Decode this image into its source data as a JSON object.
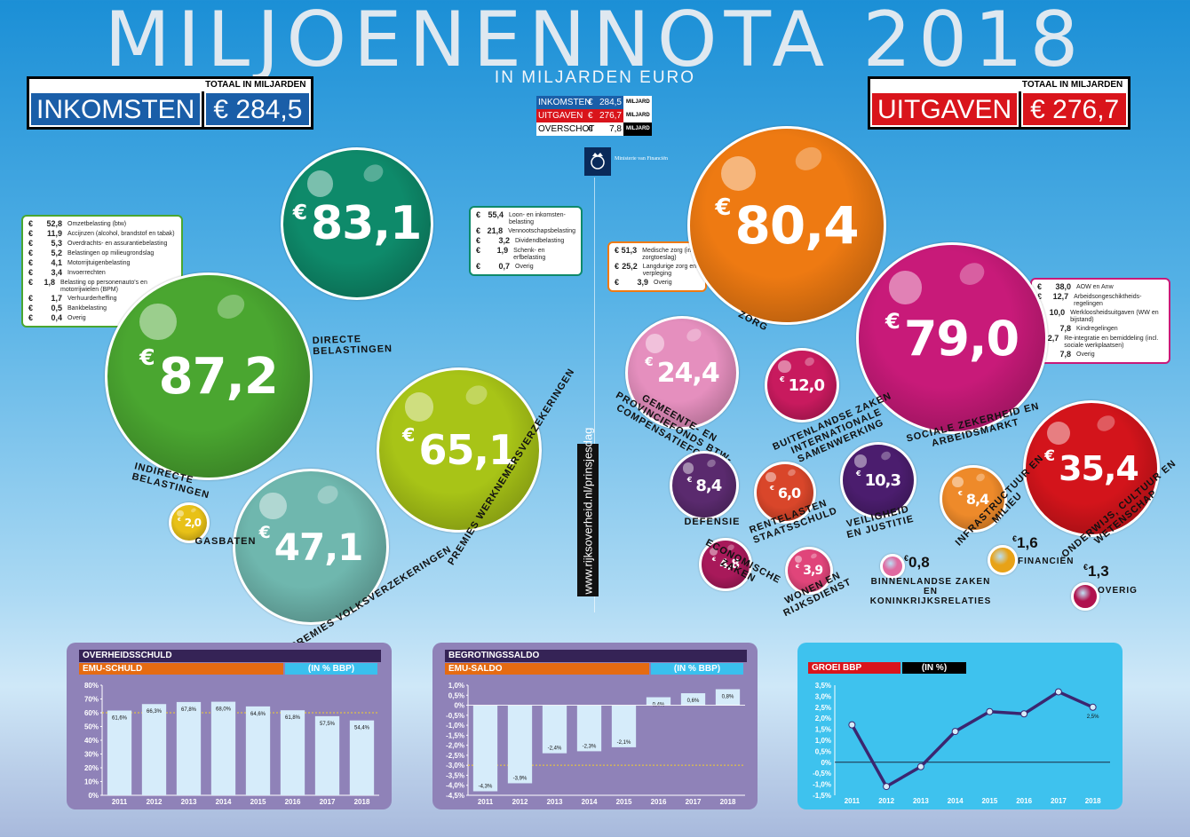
{
  "title": "MILJOENENNOTA 2018",
  "subtitle": "IN MILJARDEN EURO",
  "totals": {
    "label": "TOTAAL IN MILJARDEN",
    "income_name": "INKOMSTEN",
    "income_value": "€ 284,5",
    "spend_name": "UITGAVEN",
    "spend_value": "€ 276,7"
  },
  "summary": [
    {
      "name": "INKOMSTEN",
      "euro": "€",
      "value": "284,5",
      "unit": "MILJARD"
    },
    {
      "name": "UITGAVEN",
      "euro": "€",
      "value": "276,7",
      "unit": "MILJARD"
    },
    {
      "name": "OVERSCHOT",
      "euro": "€",
      "value": "7,8",
      "unit": "MILJARD"
    }
  ],
  "ministry": "Ministerie van Financiën",
  "url": "www.rijksoverheid.nl/prinsjesdag",
  "colors": {
    "income_blue": "#1a5ea8",
    "spend_red": "#d9141b",
    "panel": "#8f82b8",
    "bar": "#d6ecfa",
    "line": "#3b2670"
  },
  "balls": [
    {
      "id": "directe",
      "euro": "€",
      "value": "83,1",
      "label": "DIRECTE BELASTINGEN",
      "color": "#0e8a6a"
    },
    {
      "id": "indirecte",
      "euro": "€",
      "value": "87,2",
      "label": "INDIRECTE BELASTINGEN",
      "color": "#4aa630"
    },
    {
      "id": "werknemers",
      "euro": "€",
      "value": "65,1",
      "label": "PREMIES WERKNEMERSVERZEKERINGEN",
      "color": "#a8c417"
    },
    {
      "id": "volks",
      "euro": "€",
      "value": "47,1",
      "label": "PREMIES VOLKSVERZEKERINGEN",
      "color": "#6fb7ae"
    },
    {
      "id": "gas",
      "euro": "€",
      "value": "2,0",
      "label": "GASBATEN",
      "color": "#e8c117"
    },
    {
      "id": "zorg",
      "euro": "€",
      "value": "80,4",
      "label": "ZORG",
      "color": "#ee7a12"
    },
    {
      "id": "sociale",
      "euro": "€",
      "value": "79,0",
      "label": "SOCIALE ZEKERHEID EN ARBEIDSMARKT",
      "color": "#c81a79"
    },
    {
      "id": "gemeente",
      "euro": "€",
      "value": "24,4",
      "label": "GEMEENTE- EN PROVINCIEFONDS BTW-COMPENSATIEFONDS",
      "color": "#e58fbe"
    },
    {
      "id": "buitenland",
      "euro": "€",
      "value": "12,0",
      "label": "BUITENLANDSE ZAKEN INTERNATIONALE SAMENWERKING",
      "color": "#c81a5e"
    },
    {
      "id": "onderwijs",
      "euro": "€",
      "value": "35,4",
      "label": "ONDERWIJS, CULTUUR EN WETENSCHAP",
      "color": "#d3141b"
    },
    {
      "id": "defensie",
      "euro": "€",
      "value": "8,4",
      "label": "DEFENSIE",
      "color": "#5a2a6e"
    },
    {
      "id": "rente",
      "euro": "€",
      "value": "6,0",
      "label": "RENTELASTEN STAATSSCHULD",
      "color": "#d9462a"
    },
    {
      "id": "veiligheid",
      "euro": "€",
      "value": "10,3",
      "label": "VEILIGHEID EN JUSTITIE",
      "color": "#4b1d6e"
    },
    {
      "id": "infra",
      "euro": "€",
      "value": "8,4",
      "label": "INFRASTRUCTUUR EN MILIEU",
      "color": "#ee8a2a"
    },
    {
      "id": "econ",
      "euro": "€",
      "value": "4,8",
      "label": "ECONOMISCHE ZAKEN",
      "color": "#a8195a"
    },
    {
      "id": "wonen",
      "euro": "€",
      "value": "3,9",
      "label": "WONEN EN RIJKSDIENST",
      "color": "#e0457a"
    }
  ],
  "small_items": [
    {
      "id": "binnenland",
      "euro": "€",
      "value": "0,8",
      "label": "BINNENLANDSE ZAKEN EN KONINKRIJKSRELATIES",
      "color": "#e06aa0"
    },
    {
      "id": "financien",
      "euro": "€",
      "value": "1,6",
      "label": "FINANCIËN",
      "color": "#e8a217"
    },
    {
      "id": "overig",
      "euro": "€",
      "value": "1,3",
      "label": "OVERIG",
      "color": "#b0124e"
    }
  ],
  "boxes": {
    "indirecte": [
      [
        "€",
        "52,8",
        "Omzetbelasting (btw)"
      ],
      [
        "€",
        "11,9",
        "Accijnzen (alcohol, brandstof en tabak)"
      ],
      [
        "€",
        "5,3",
        "Overdrachts- en assurantiebelasting"
      ],
      [
        "€",
        "5,2",
        "Belastingen op milieugrondslag"
      ],
      [
        "€",
        "4,1",
        "Motorrijtuigenbelasting"
      ],
      [
        "€",
        "3,4",
        "Invoerrechten"
      ],
      [
        "€",
        "1,8",
        "Belasting op personenauto's en motorrijwielen (BPM)"
      ],
      [
        "€",
        "1,7",
        "Verhuurderheffing"
      ],
      [
        "€",
        "0,5",
        "Bankbelasting"
      ],
      [
        "€",
        "0,4",
        "Overig"
      ]
    ],
    "directe": [
      [
        "€",
        "55,4",
        "Loon- en inkomsten-belasting"
      ],
      [
        "€",
        "21,8",
        "Vennootschapsbelasting"
      ],
      [
        "€",
        "3,2",
        "Dividendbelasting"
      ],
      [
        "€",
        "1,9",
        "Schenk- en erfbelasting"
      ],
      [
        "€",
        "0,7",
        "Overig"
      ]
    ],
    "zorg": [
      [
        "€",
        "51,3",
        "Medische zorg (incl. zorgtoeslag)"
      ],
      [
        "€",
        "25,2",
        "Langdurige zorg en verpleging"
      ],
      [
        "€",
        "3,9",
        "Overig"
      ]
    ],
    "sociale": [
      [
        "€",
        "38,0",
        "AOW en Anw"
      ],
      [
        "€",
        "12,7",
        "Arbeidsongeschiktheids-regelingen"
      ],
      [
        "€",
        "10,0",
        "Werkloosheidsuitgaven (WW en bijstand)"
      ],
      [
        "€",
        "7,8",
        "Kindregelingen"
      ],
      [
        "€",
        "2,7",
        "Re-integratie en bemiddeling (incl. sociale werkplaatsen)"
      ],
      [
        "€",
        "7,8",
        "Overig"
      ]
    ]
  },
  "chart_data": [
    {
      "type": "bar",
      "title": "OVERHEIDSSCHULD",
      "subtitle": "EMU-SCHULD",
      "unit": "(IN % BBP)",
      "categories": [
        "2011",
        "2012",
        "2013",
        "2014",
        "2015",
        "2016",
        "2017",
        "2018"
      ],
      "values": [
        61.6,
        66.3,
        67.8,
        68.0,
        64.6,
        61.8,
        57.5,
        54.4
      ],
      "value_labels": [
        "61,6%",
        "66,3%",
        "67,8%",
        "68,0%",
        "64,6%",
        "61,8%",
        "57,5%",
        "54,4%"
      ],
      "yticks": [
        "80%",
        "70%",
        "60%",
        "50%",
        "40%",
        "30%",
        "20%",
        "10%",
        "0%"
      ],
      "ylim": [
        0,
        80
      ],
      "reference": 60,
      "grid": false
    },
    {
      "type": "bar",
      "title": "BEGROTINGSSALDO",
      "subtitle": "EMU-SALDO",
      "unit": "(IN % BBP)",
      "categories": [
        "2011",
        "2012",
        "2013",
        "2014",
        "2015",
        "2016",
        "2017",
        "2018"
      ],
      "values": [
        -4.3,
        -3.9,
        -2.4,
        -2.3,
        -2.1,
        0.4,
        0.6,
        0.8
      ],
      "value_labels": [
        "-4,3%",
        "-3,9%",
        "-2,4%",
        "-2,3%",
        "-2,1%",
        "0,4%",
        "0,6%",
        "0,8%"
      ],
      "yticks": [
        "1,0%",
        "0,5%",
        "0%",
        "-0,5%",
        "-1,0%",
        "-1,5%",
        "-2,0%",
        "-2,5%",
        "-3,0%",
        "-3,5%",
        "-4,0%",
        "-4,5%"
      ],
      "ylim": [
        -4.5,
        1.0
      ],
      "reference": -3.0,
      "grid": false
    },
    {
      "type": "line",
      "title": "GROEI BBP",
      "unit": "(IN %)",
      "x": [
        "2011",
        "2012",
        "2013",
        "2014",
        "2015",
        "2016",
        "2017",
        "2018"
      ],
      "values": [
        1.7,
        -1.1,
        -0.2,
        1.4,
        2.3,
        2.2,
        3.2,
        2.5
      ],
      "value_labels": [
        "",
        "",
        "",
        "",
        "",
        "",
        "",
        "2,5%"
      ],
      "yticks": [
        "3,5%",
        "3,0%",
        "2,5%",
        "2,0%",
        "1,5%",
        "1,0%",
        "0,5%",
        "0%",
        "-0,5%",
        "-1,0%",
        "-1,5%"
      ],
      "ylim": [
        -1.5,
        3.5
      ],
      "grid": false
    }
  ]
}
